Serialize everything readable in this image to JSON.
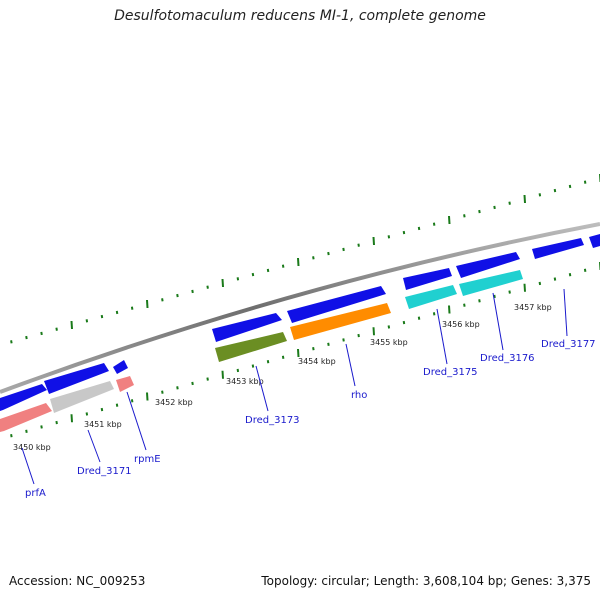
{
  "title": "Desulfotomaculum reducens MI-1, complete genome",
  "accession": "Accession: NC_009253",
  "summary": "Topology: circular; Length: 3,608,104 bp; Genes: 3,375",
  "colors": {
    "backbone": "#8a8a8a",
    "forward_cds": "#1010e6",
    "ticks": "#1a7a1a",
    "gene_label": "#1a1acc"
  },
  "scale_labels": [
    "3450 kbp",
    "3451 kbp",
    "3452 kbp",
    "3453 kbp",
    "3454 kbp",
    "3455 kbp",
    "3456 kbp",
    "3457 kbp"
  ],
  "genes": [
    {
      "name": "prfA",
      "color": "#f08080"
    },
    {
      "name": "Dred_3171",
      "color": "#c8c8c8"
    },
    {
      "name": "rpmE",
      "color": "#f08080"
    },
    {
      "name": "Dred_3173",
      "color": "#6b8e23"
    },
    {
      "name": "rho",
      "color": "#ff8c00"
    },
    {
      "name": "Dred_3175",
      "color": "#20d0d0"
    },
    {
      "name": "Dred_3176",
      "color": "#20d0d0"
    },
    {
      "name": "Dred_3177",
      "color": "#1010e6"
    }
  ]
}
